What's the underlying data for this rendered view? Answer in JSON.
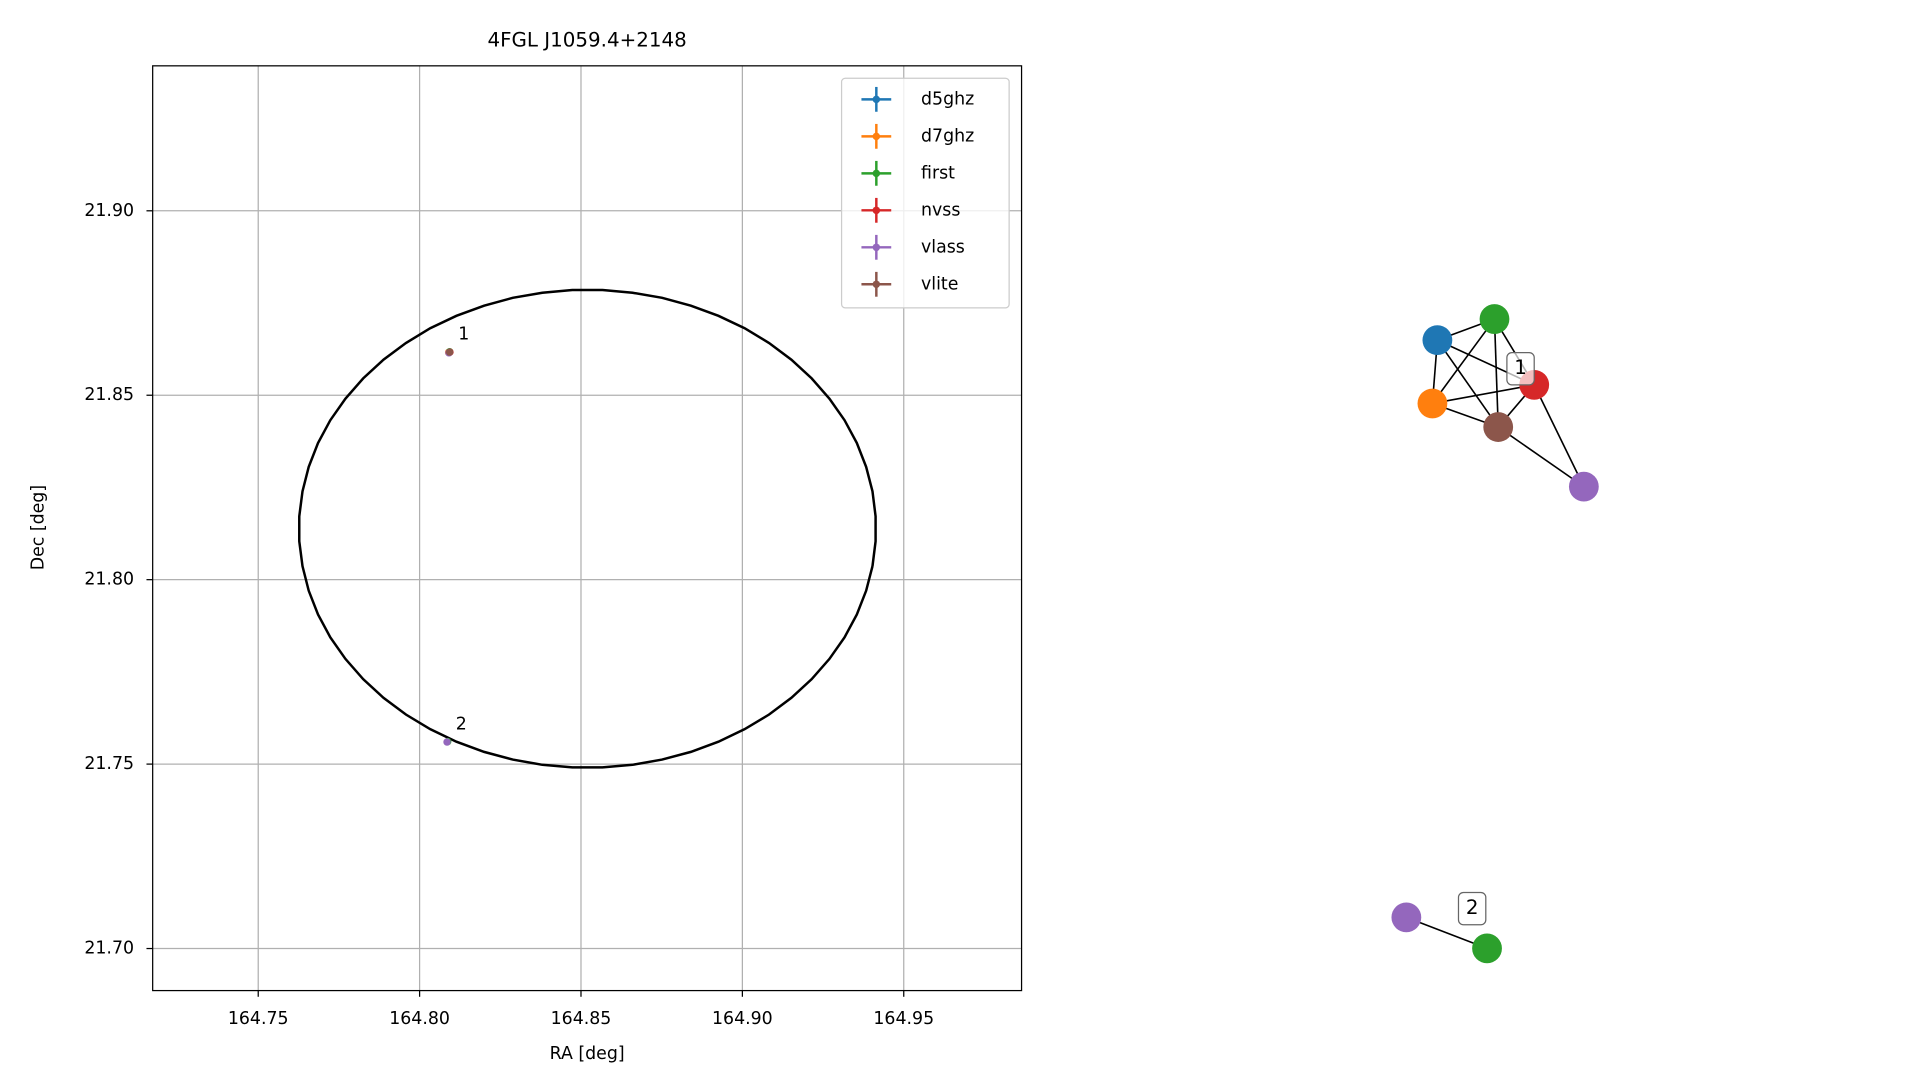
{
  "chart_data": [
    {
      "type": "scatter",
      "title": "4FGL J1059.4+2148",
      "xlabel": "RA [deg]",
      "ylabel": "Dec [deg]",
      "xlim": [
        164.7173,
        164.9865
      ],
      "ylim": [
        21.6886,
        21.9393
      ],
      "xticks": [
        164.75,
        {
          "value": 164.8,
          "label": "164.80"
        },
        164.85,
        {
          "value": 164.9,
          "label": "164.90"
        },
        164.95
      ],
      "yticks": [
        {
          "value": 21.7,
          "label": "21.70"
        },
        21.75,
        {
          "value": 21.8,
          "label": "21.80"
        },
        21.85,
        {
          "value": 21.9,
          "label": "21.90"
        }
      ],
      "grid": true,
      "legend": "upper right",
      "series": [
        {
          "name": "d5ghz",
          "color": "#1f77b4",
          "x": [
            164.8092
          ],
          "values": [
            21.8617
          ]
        },
        {
          "name": "d7ghz",
          "color": "#ff7f0e",
          "x": [
            164.809
          ],
          "values": [
            21.8616
          ]
        },
        {
          "name": "first",
          "color": "#2ca02c",
          "x": [
            164.8093,
            164.8087
          ],
          "values": [
            21.8618,
            21.7561
          ]
        },
        {
          "name": "nvss",
          "color": "#d62728",
          "x": [
            164.8094
          ],
          "values": [
            21.8617
          ]
        },
        {
          "name": "vlass",
          "color": "#9467bd",
          "x": [
            164.8091,
            164.8085
          ],
          "values": [
            21.8615,
            21.756
          ]
        },
        {
          "name": "vlite",
          "color": "#8c564b",
          "x": [
            164.8093
          ],
          "values": [
            21.8617
          ]
        }
      ],
      "ellipse": {
        "center": [
          164.852,
          21.8138
        ],
        "semi_x": 0.0894,
        "semi_y": 0.0648,
        "angle": -9,
        "color": "#000000"
      },
      "annotations": [
        "1",
        "2"
      ]
    },
    {
      "type": "network",
      "nodes": [
        {
          "color": "#1f77b4"
        },
        {
          "color": "#2ca02c"
        },
        {
          "color": "#d62728"
        },
        {
          "color": "#ff7f0e"
        },
        {
          "color": "#8c564b"
        },
        {
          "color": "#9467bd"
        },
        {
          "color": "#9467bd"
        },
        {
          "color": "#2ca02c"
        }
      ],
      "edges": [
        [
          0,
          1
        ],
        [
          0,
          3
        ],
        [
          0,
          2
        ],
        [
          0,
          4
        ],
        [
          1,
          2
        ],
        [
          1,
          3
        ],
        [
          1,
          4
        ],
        [
          3,
          2
        ],
        [
          3,
          4
        ],
        [
          2,
          4
        ],
        [
          2,
          5
        ],
        [
          4,
          5
        ],
        [
          6,
          7
        ]
      ],
      "labels": [
        "1",
        "2"
      ]
    }
  ]
}
